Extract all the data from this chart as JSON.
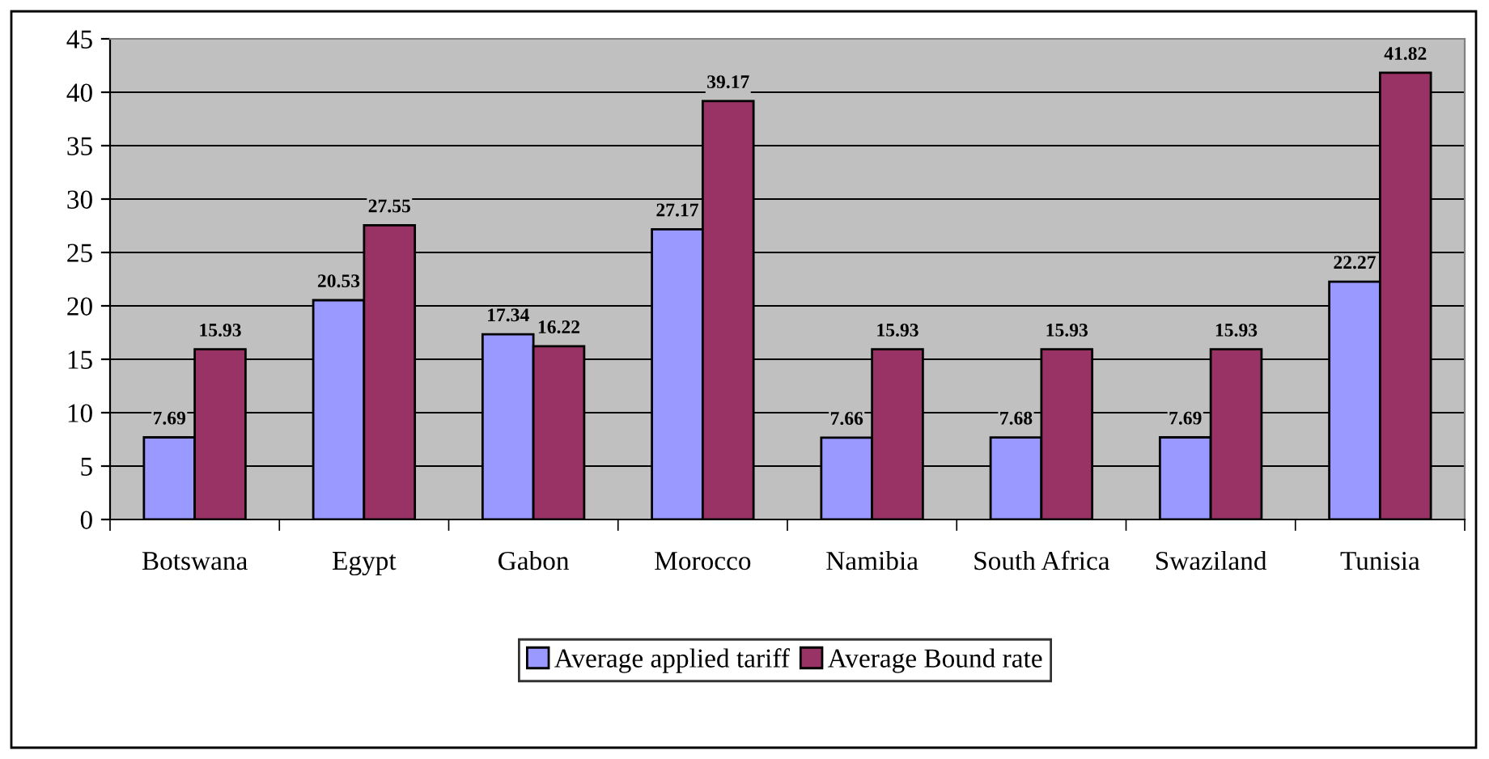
{
  "chart_data": {
    "type": "bar",
    "categories": [
      "Botswana",
      "Egypt",
      "Gabon",
      "Morocco",
      "Namibia",
      "South Africa",
      "Swaziland",
      "Tunisia"
    ],
    "series": [
      {
        "name": "Average applied tariff",
        "color": "#9999ff",
        "values": [
          7.69,
          20.53,
          17.34,
          27.17,
          7.66,
          7.68,
          7.69,
          22.27
        ]
      },
      {
        "name": "Average Bound rate",
        "color": "#993366",
        "values": [
          15.93,
          27.55,
          16.22,
          39.17,
          15.93,
          15.93,
          15.93,
          41.82
        ]
      }
    ],
    "ylim": [
      0,
      45
    ],
    "yticks": [
      0,
      5,
      10,
      15,
      20,
      25,
      30,
      35,
      40,
      45
    ],
    "grid": "y",
    "legend": "bottom",
    "data_labels": true
  }
}
